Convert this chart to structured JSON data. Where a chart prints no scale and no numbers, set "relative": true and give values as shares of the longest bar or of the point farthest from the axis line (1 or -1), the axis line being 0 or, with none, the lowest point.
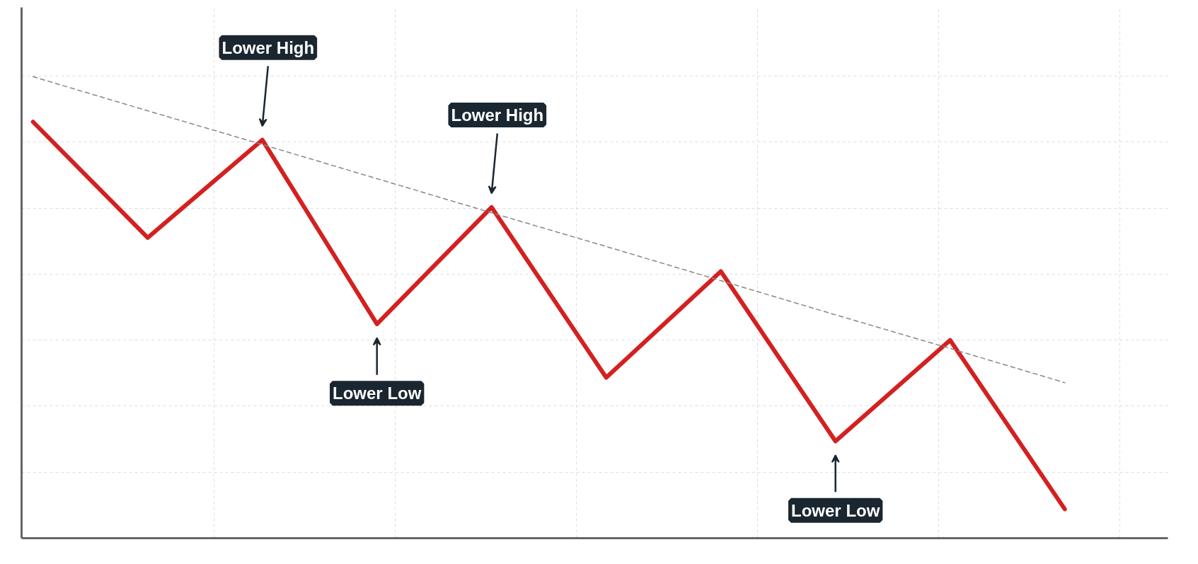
{
  "chart_data": {
    "type": "line",
    "relative": true,
    "grid": true,
    "tick_labels": false,
    "categories": [
      null,
      null,
      null,
      null,
      null,
      null,
      null,
      null,
      null,
      null
    ],
    "series": [
      {
        "color": "#d42020",
        "values": [
          0.902,
          0.651,
          0.863,
          0.464,
          0.717,
          0.348,
          0.578,
          0.21,
          0.429,
          0.063
        ]
      },
      {
        "color": "#888888",
        "line_style": "dashed",
        "values": [
          1.0,
          0.926,
          0.853,
          0.779,
          0.705,
          0.632,
          0.558,
          0.484,
          0.411,
          0.337
        ]
      }
    ],
    "annotations": [
      "Lower High",
      "Lower High",
      "Lower Low",
      "Lower Low"
    ]
  }
}
